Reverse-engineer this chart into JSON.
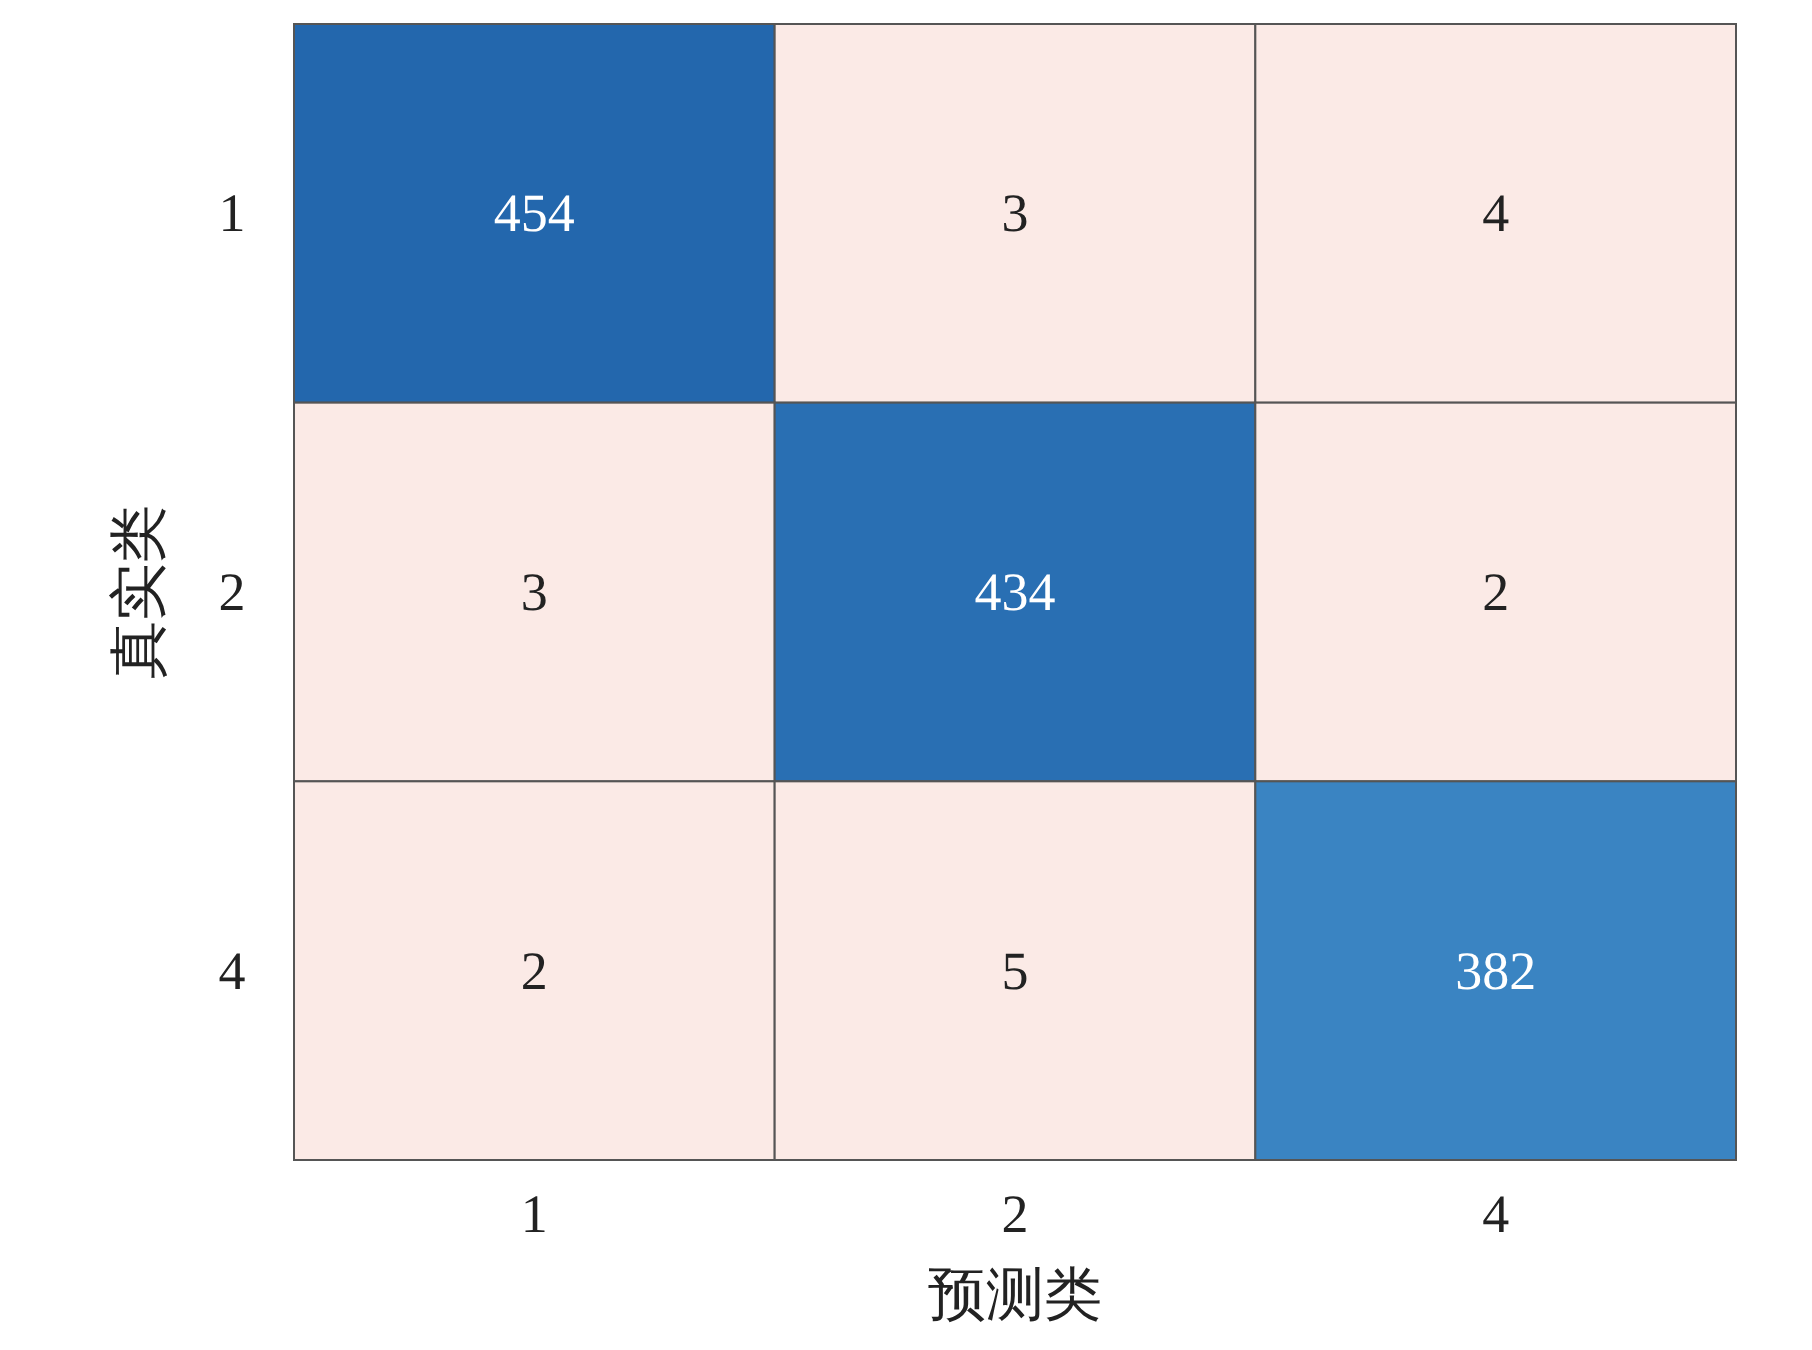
{
  "chart_data": {
    "type": "heatmap",
    "xlabel": "预测类",
    "ylabel": "真实类",
    "categories": [
      "1",
      "2",
      "4"
    ],
    "y_categories": [
      "1",
      "2",
      "4"
    ],
    "data_labels": true,
    "cells": [
      [
        454,
        3,
        4
      ],
      [
        3,
        434,
        2
      ],
      [
        2,
        5,
        382
      ]
    ]
  }
}
